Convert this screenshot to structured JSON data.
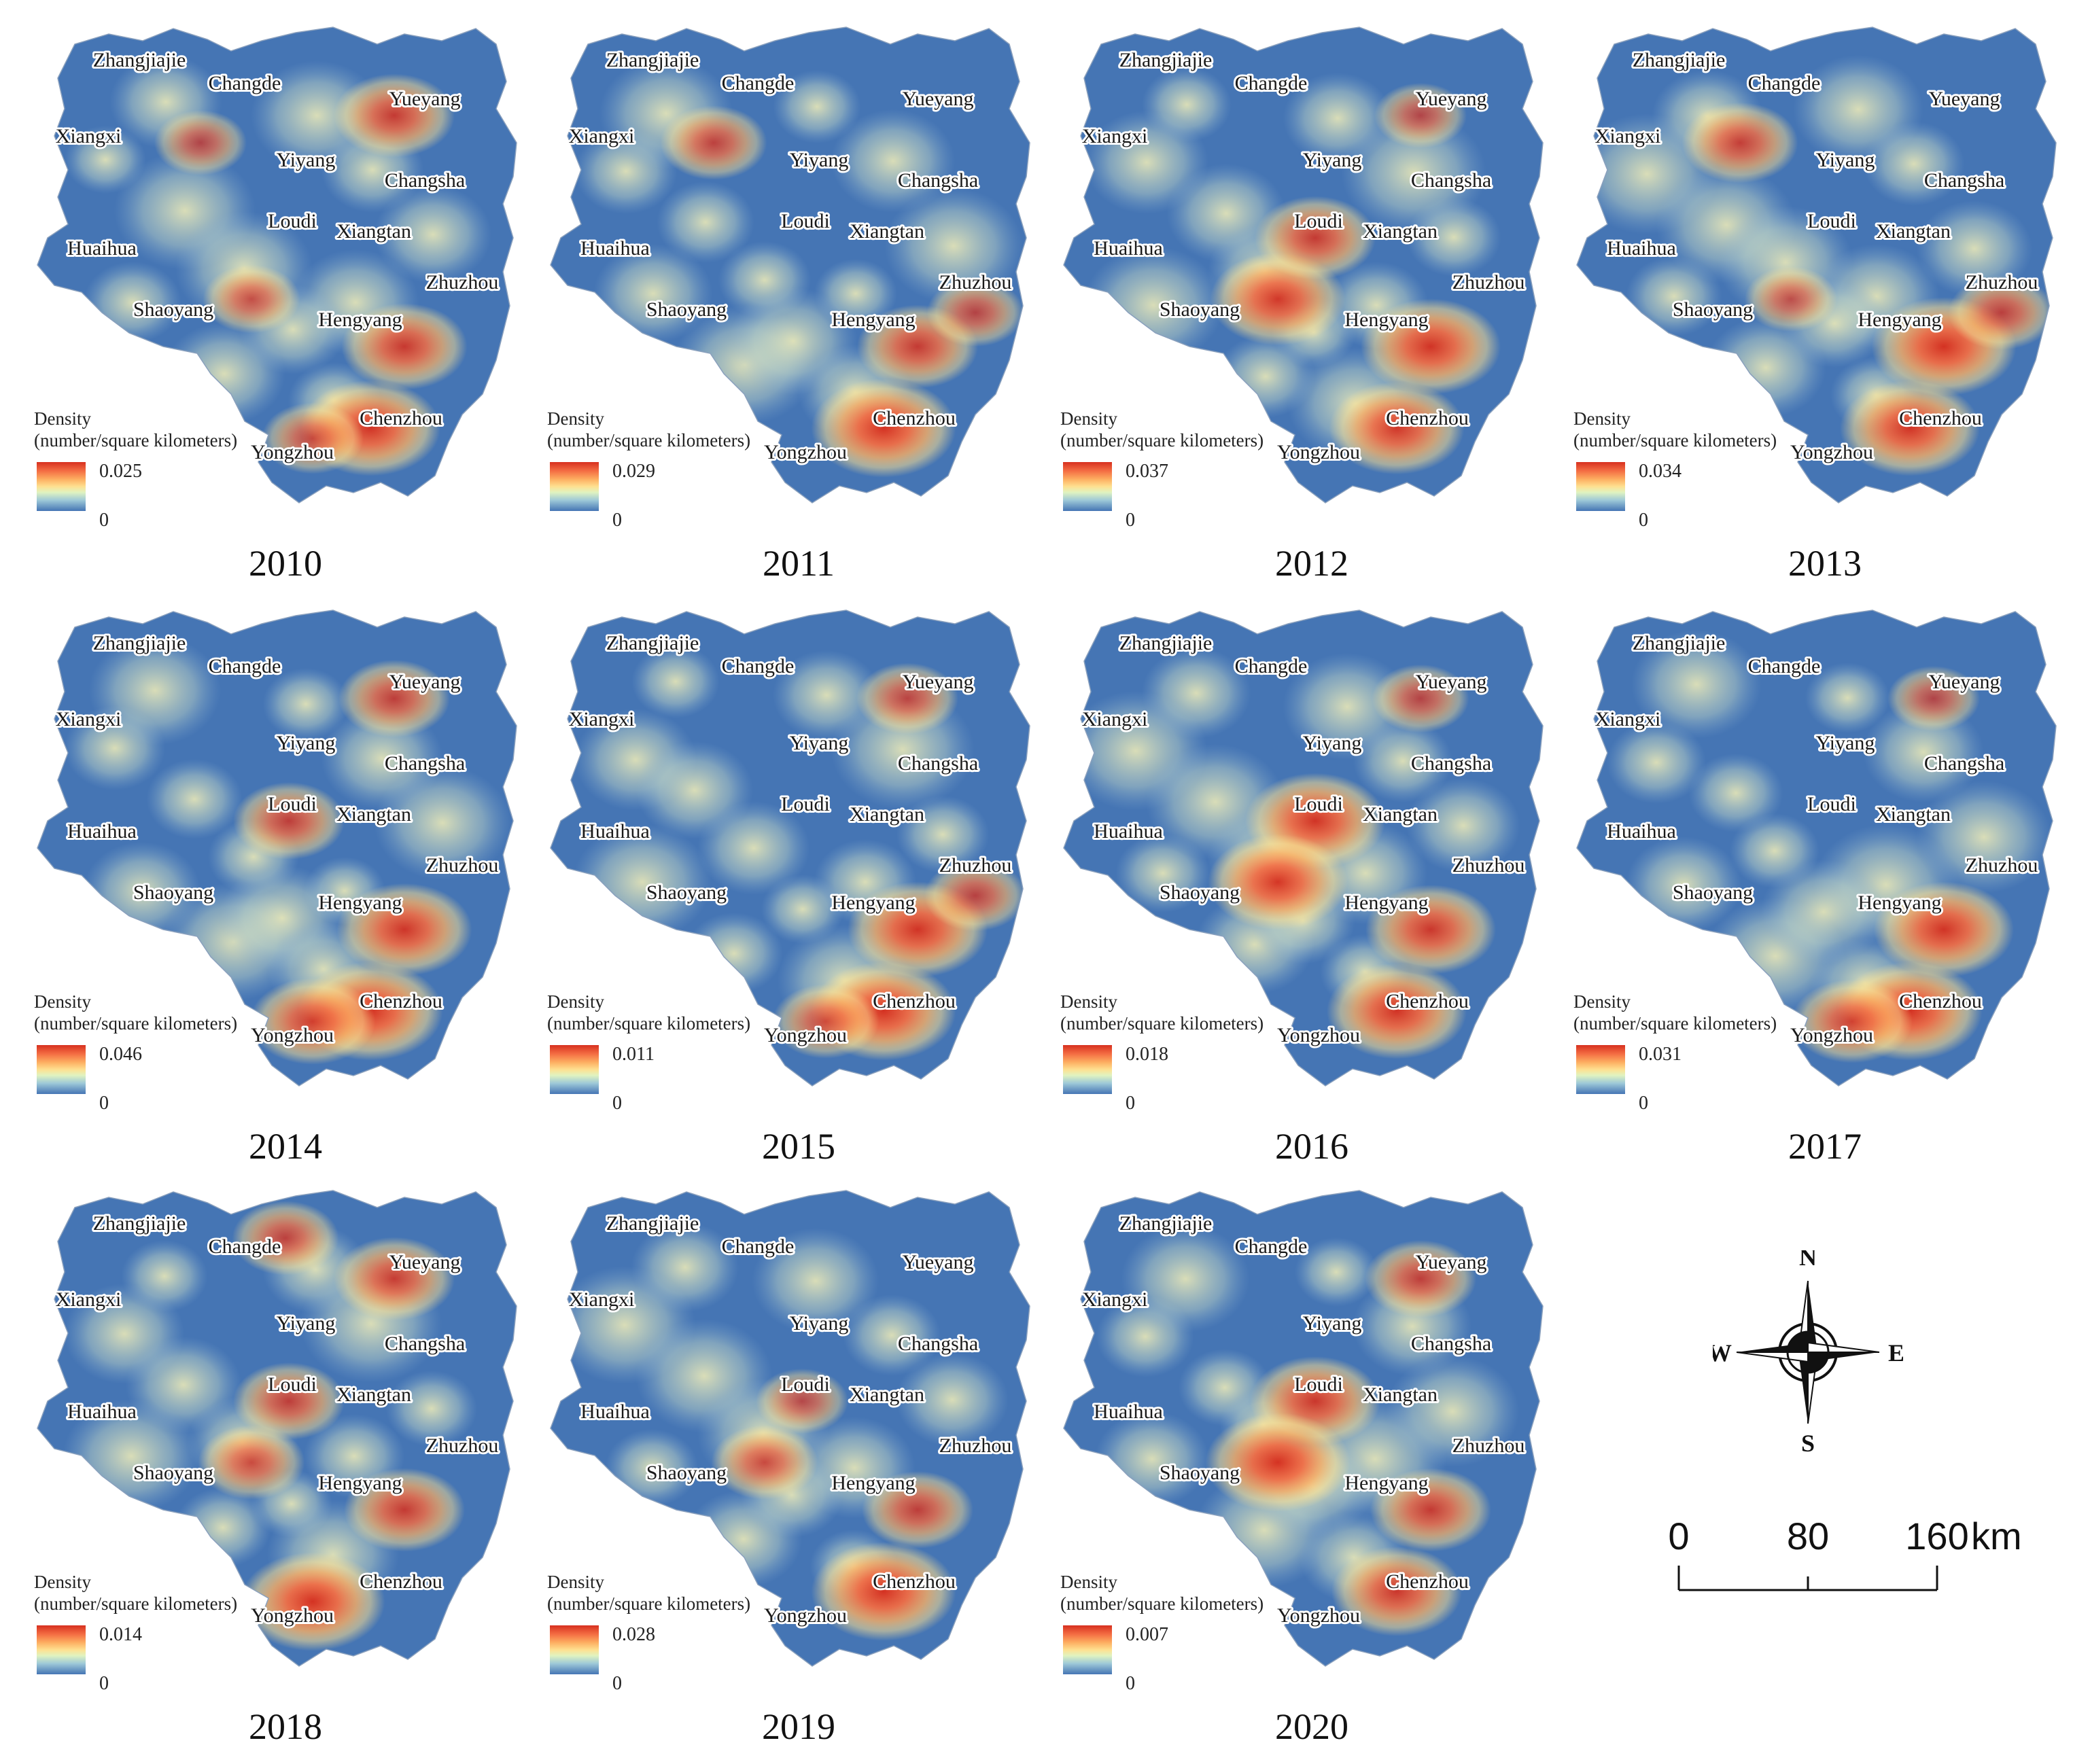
{
  "legend_title_line1": "Density",
  "legend_title_line2": "(number/square kilometers)",
  "legend_min": "0",
  "colors": {
    "low": "#4575b4",
    "mid": "#fee090",
    "high": "#d7301f"
  },
  "cities": [
    "Zhangjiajie",
    "Changde",
    "Yueyang",
    "Xiangxi",
    "Yiyang",
    "Changsha",
    "Loudi",
    "Xiangtan",
    "Huaihua",
    "Zhuzhou",
    "Shaoyang",
    "Hengyang",
    "Chenzhou",
    "Yongzhou"
  ],
  "panels": [
    {
      "year": "2010",
      "max": "0.025",
      "hotspots": [
        [
          "Yueyang",
          0.7
        ],
        [
          "Chenzhou",
          0.9
        ],
        [
          "Hengyang",
          0.75
        ],
        [
          "Yongzhou",
          0.5
        ],
        [
          "Xiangxi",
          0.4
        ],
        [
          "Shaoyang",
          0.45
        ]
      ]
    },
    {
      "year": "2011",
      "max": "0.029",
      "hotspots": [
        [
          "Chenzhou",
          0.95
        ],
        [
          "Hengyang",
          0.7
        ],
        [
          "Xiangxi",
          0.55
        ],
        [
          "Zhuzhou",
          0.45
        ]
      ]
    },
    {
      "year": "2012",
      "max": "0.037",
      "hotspots": [
        [
          "Shaoyang",
          0.85
        ],
        [
          "Loudi",
          0.7
        ],
        [
          "Hengyang",
          0.9
        ],
        [
          "Chenzhou",
          0.85
        ],
        [
          "Yueyang",
          0.4
        ]
      ]
    },
    {
      "year": "2013",
      "max": "0.034",
      "hotspots": [
        [
          "Xiangxi",
          0.65
        ],
        [
          "Hengyang",
          0.95
        ],
        [
          "Chenzhou",
          0.9
        ],
        [
          "Zhuzhou",
          0.55
        ],
        [
          "Shaoyang",
          0.4
        ]
      ]
    },
    {
      "year": "2014",
      "max": "0.046",
      "hotspots": [
        [
          "Yueyang",
          0.6
        ],
        [
          "Loudi",
          0.6
        ],
        [
          "Hengyang",
          0.85
        ],
        [
          "Chenzhou",
          0.95
        ],
        [
          "Yongzhou",
          0.75
        ]
      ]
    },
    {
      "year": "2015",
      "max": "0.011",
      "hotspots": [
        [
          "Yueyang",
          0.5
        ],
        [
          "Hengyang",
          0.9
        ],
        [
          "Chenzhou",
          0.95
        ],
        [
          "Zhuzhou",
          0.5
        ],
        [
          "Yongzhou",
          0.55
        ]
      ]
    },
    {
      "year": "2016",
      "max": "0.018",
      "hotspots": [
        [
          "Loudi",
          0.9
        ],
        [
          "Shaoyang",
          0.9
        ],
        [
          "Hengyang",
          0.8
        ],
        [
          "Chenzhou",
          0.9
        ],
        [
          "Yueyang",
          0.45
        ]
      ]
    },
    {
      "year": "2017",
      "max": "0.031",
      "hotspots": [
        [
          "Hengyang",
          0.9
        ],
        [
          "Chenzhou",
          0.95
        ],
        [
          "Yongzhou",
          0.7
        ],
        [
          "Yueyang",
          0.4
        ]
      ]
    },
    {
      "year": "2018",
      "max": "0.014",
      "hotspots": [
        [
          "Yueyang",
          0.7
        ],
        [
          "Changde",
          0.55
        ],
        [
          "Loudi",
          0.6
        ],
        [
          "Shaoyang",
          0.55
        ],
        [
          "Hengyang",
          0.7
        ],
        [
          "Yongzhou",
          0.95
        ]
      ]
    },
    {
      "year": "2019",
      "max": "0.028",
      "hotspots": [
        [
          "Shaoyang",
          0.55
        ],
        [
          "Hengyang",
          0.6
        ],
        [
          "Chenzhou",
          0.95
        ],
        [
          "Loudi",
          0.4
        ]
      ]
    },
    {
      "year": "2020",
      "max": "0.007",
      "hotspots": [
        [
          "Yueyang",
          0.6
        ],
        [
          "Loudi",
          0.8
        ],
        [
          "Shaoyang",
          0.95
        ],
        [
          "Hengyang",
          0.7
        ],
        [
          "Chenzhou",
          0.8
        ]
      ]
    }
  ],
  "compass": {
    "n": "N",
    "s": "S",
    "e": "E",
    "w": "W"
  },
  "scale": {
    "labels": [
      "0",
      "80",
      "160"
    ],
    "unit": "km"
  }
}
